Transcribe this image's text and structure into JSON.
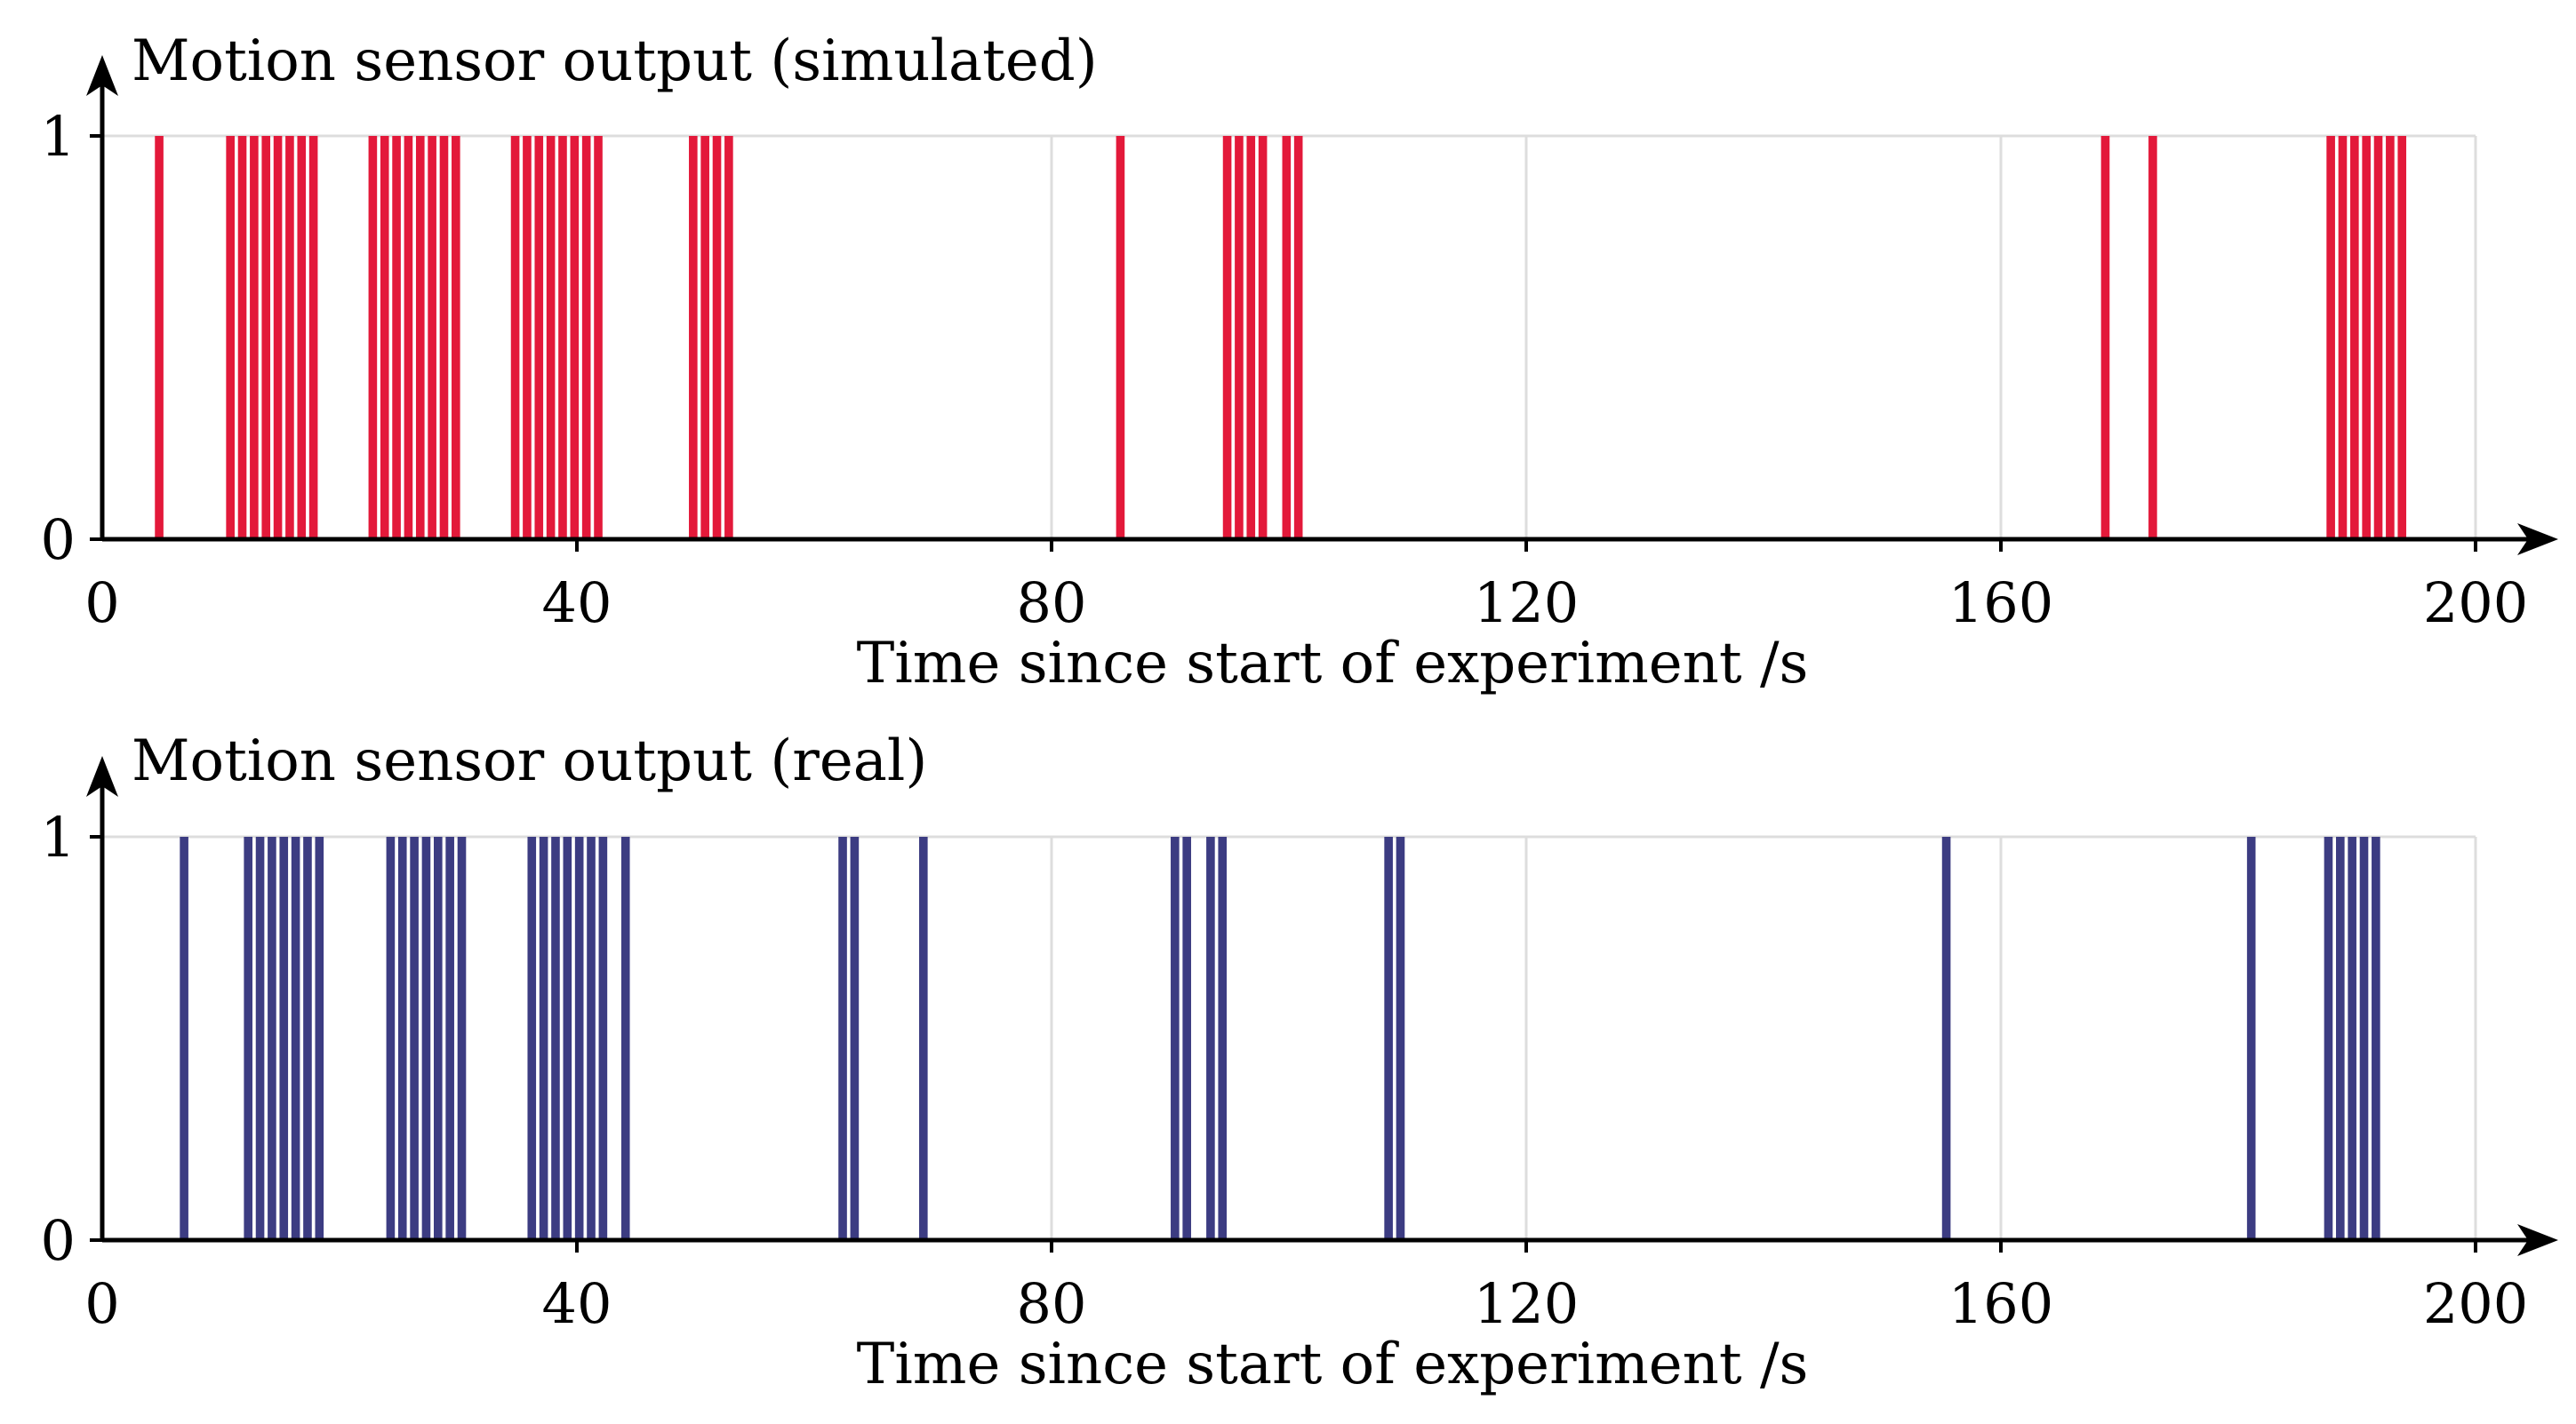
{
  "chart_data": [
    {
      "type": "bar",
      "title": "Motion sensor output (simulated)",
      "xlabel": "Time since start of experiment /s",
      "ylabel": "Motion sensor output (simulated)",
      "xlim": [
        0,
        200
      ],
      "ylim": [
        0,
        1
      ],
      "xticks": [
        "0",
        "40",
        "80",
        "120",
        "160",
        "200"
      ],
      "yticks": [
        "0",
        "1"
      ],
      "grid": true,
      "color": "#e3193a",
      "bar_width": 1,
      "series": [
        {
          "name": "simulated",
          "x": [
            4.8,
            10.8,
            11.8,
            12.8,
            13.8,
            14.8,
            15.8,
            16.8,
            17.8,
            22.8,
            23.8,
            24.8,
            25.8,
            26.8,
            27.8,
            28.8,
            29.8,
            34.8,
            35.8,
            36.8,
            37.8,
            38.8,
            39.8,
            40.8,
            41.8,
            49.8,
            50.8,
            51.8,
            52.8,
            85.8,
            94.8,
            95.8,
            96.8,
            97.8,
            99.8,
            100.8,
            168.8,
            172.8,
            187.8,
            188.8,
            189.8,
            190.8,
            191.8,
            192.8,
            193.8
          ],
          "values": [
            1,
            1,
            1,
            1,
            1,
            1,
            1,
            1,
            1,
            1,
            1,
            1,
            1,
            1,
            1,
            1,
            1,
            1,
            1,
            1,
            1,
            1,
            1,
            1,
            1,
            1,
            1,
            1,
            1,
            1,
            1,
            1,
            1,
            1,
            1,
            1,
            1,
            1,
            1,
            1,
            1,
            1,
            1,
            1,
            1
          ]
        }
      ]
    },
    {
      "type": "bar",
      "title": "Motion sensor output (real)",
      "xlabel": "Time since start of experiment /s",
      "ylabel": "Motion sensor output (real)",
      "xlim": [
        0,
        200
      ],
      "ylim": [
        0,
        1
      ],
      "xticks": [
        "0",
        "40",
        "80",
        "120",
        "160",
        "200"
      ],
      "yticks": [
        "0",
        "1"
      ],
      "grid": true,
      "color": "#3c3c82",
      "bar_width": 1,
      "series": [
        {
          "name": "real",
          "x": [
            6.9,
            12.3,
            13.3,
            14.3,
            15.3,
            16.3,
            17.3,
            18.3,
            24.3,
            25.3,
            26.3,
            27.3,
            28.3,
            29.3,
            30.3,
            36.2,
            37.2,
            38.2,
            39.2,
            40.2,
            41.2,
            42.2,
            44.1,
            62.4,
            63.4,
            69.2,
            90.4,
            91.4,
            93.4,
            94.4,
            108.4,
            109.4,
            155.4,
            181.1,
            187.6,
            188.6,
            189.6,
            190.6,
            191.6
          ],
          "values": [
            1,
            1,
            1,
            1,
            1,
            1,
            1,
            1,
            1,
            1,
            1,
            1,
            1,
            1,
            1,
            1,
            1,
            1,
            1,
            1,
            1,
            1,
            1,
            1,
            1,
            1,
            1,
            1,
            1,
            1,
            1,
            1,
            1,
            1,
            1,
            1,
            1,
            1,
            1
          ]
        }
      ]
    }
  ]
}
